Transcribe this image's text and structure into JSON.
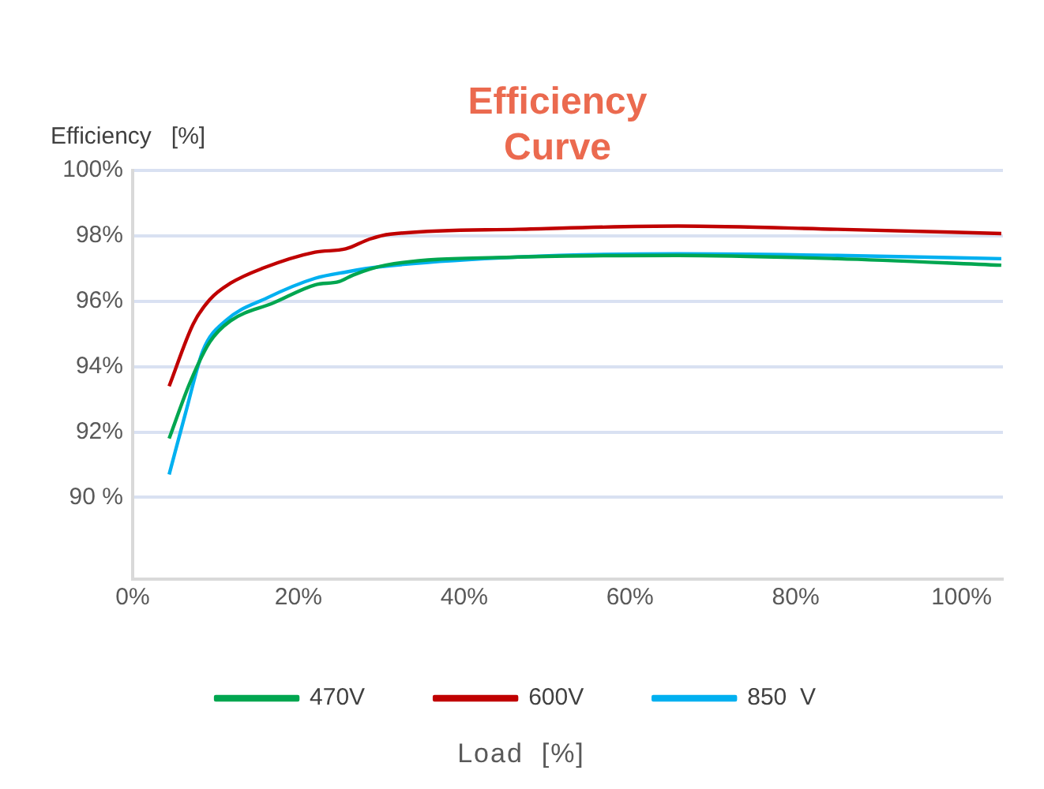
{
  "chart_data": {
    "type": "line",
    "title": "Efficiency Curve",
    "ylabel": "Efficiency   [%]",
    "xlabel": "Load  [%]",
    "xlim": [
      0,
      105
    ],
    "xticks": [
      {
        "value": 0,
        "label": "0%"
      },
      {
        "value": 20,
        "label": "20%"
      },
      {
        "value": 40,
        "label": "40%"
      },
      {
        "value": 60,
        "label": "60%"
      },
      {
        "value": 80,
        "label": "80%"
      },
      {
        "value": 100,
        "label": "100%"
      }
    ],
    "ylim": [
      87.5,
      100
    ],
    "yticks": [
      {
        "value": 90,
        "label": "90 %"
      },
      {
        "value": 92,
        "label": "92%"
      },
      {
        "value": 94,
        "label": "94%"
      },
      {
        "value": 96,
        "label": "96%"
      },
      {
        "value": 98,
        "label": "98%"
      },
      {
        "value": 100,
        "label": "100%"
      }
    ],
    "grid": "y",
    "legend": "bottom",
    "marker": "none",
    "line_style": "solid",
    "series": [
      {
        "name": "470V",
        "color": "#00a650",
        "x": [
          4.4,
          6.9,
          9.3,
          11.8,
          17,
          22,
          24.9,
          26.6,
          30.5,
          46.5,
          65.8,
          85,
          104.8
        ],
        "values": [
          91.8,
          93.5,
          94.75,
          95.4,
          95.95,
          96.5,
          96.6,
          96.8,
          97.1,
          97.35,
          97.4,
          97.3,
          97.1
        ]
      },
      {
        "name": "600V",
        "color": "#c00000",
        "x": [
          4.4,
          7.3,
          9.3,
          11.8,
          15.6,
          22,
          25.7,
          28.6,
          31.1,
          46.5,
          65.8,
          85,
          104.8
        ],
        "values": [
          93.4,
          95.3,
          96.05,
          96.55,
          97.0,
          97.5,
          97.6,
          97.9,
          98.05,
          98.2,
          98.3,
          98.2,
          98.07
        ]
      },
      {
        "name": "850  V",
        "color": "#00b0f0",
        "x": [
          4.4,
          6.4,
          8.5,
          11.2,
          16.2,
          22,
          25.9,
          29.7,
          46.5,
          65.8,
          85,
          104.8
        ],
        "values": [
          90.7,
          92.6,
          94.5,
          95.4,
          96.1,
          96.7,
          96.9,
          97.05,
          97.35,
          97.45,
          97.4,
          97.3
        ]
      }
    ]
  }
}
